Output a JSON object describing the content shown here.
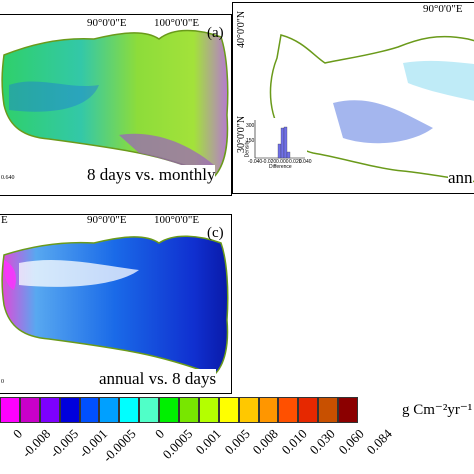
{
  "panels": {
    "a": {
      "letter": "(a)",
      "caption": "8 days vs. monthly",
      "top_longitudes": [
        "90°0'0\"E",
        "100°0'0\"E"
      ],
      "scale_label": "0.640"
    },
    "b": {
      "caption_partial": "ann",
      "top_longitudes": [
        "90°0'0\"E"
      ],
      "latitudes": [
        "40°0'0\"N",
        "30°0'0\"N"
      ],
      "hist": {
        "y_ticks": [
          "300",
          "150"
        ],
        "y_label": "Density",
        "x_ticks": [
          "-0.040",
          "-0.020",
          "0.000",
          "0.020",
          "0.040"
        ],
        "x_label": "Difference"
      }
    },
    "c": {
      "letter": "(c)",
      "caption": "annual vs. 8 days",
      "top_longitudes": [
        "E",
        "90°0'0\"E",
        "100°0'0\"E"
      ],
      "scale_label": "0"
    },
    "top_left_fragment": "E"
  },
  "legend": {
    "colors": [
      "#ff00ff",
      "#c800c8",
      "#7d00ff",
      "#0000dc",
      "#0050ff",
      "#00a0ff",
      "#00ffff",
      "#50ffc8",
      "#00f000",
      "#78e600",
      "#b4ff00",
      "#ffff00",
      "#ffc800",
      "#ff9600",
      "#ff5000",
      "#e62800",
      "#c85000",
      "#8b0000"
    ],
    "labels": [
      "0",
      "-0.008",
      "-0.005",
      "-0.001",
      "-0.0005",
      "0",
      "0.0005",
      "0.001",
      "0.005",
      "0.008",
      "0.010",
      "0.030",
      "0.060",
      "0.084"
    ],
    "units": "g Cm⁻²yr⁻¹"
  }
}
